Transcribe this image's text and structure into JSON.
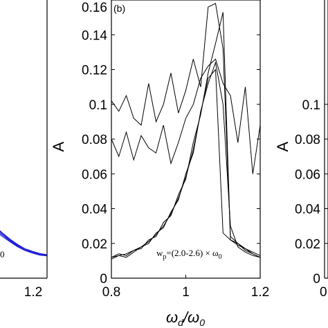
{
  "chart_data": [
    {
      "type": "line",
      "panel": "left-partial",
      "xlabel": "",
      "ylabel": "",
      "xticks": [
        1.2
      ],
      "xlim": [
        0.8,
        1.2
      ],
      "line_color": "#1f1fd6",
      "annotation": "0",
      "series": [
        {
          "x": [
            1.06,
            1.08,
            1.1,
            1.12,
            1.14,
            1.16,
            1.18,
            1.2
          ],
          "values": [
            0.03,
            0.026,
            0.0225,
            0.0195,
            0.017,
            0.0155,
            0.0142,
            0.0135
          ]
        },
        {
          "x": [
            1.06,
            1.08,
            1.1,
            1.12,
            1.14,
            1.16,
            1.18,
            1.2
          ],
          "values": [
            0.029,
            0.0255,
            0.022,
            0.019,
            0.0168,
            0.015,
            0.014,
            0.0132
          ]
        },
        {
          "x": [
            1.06,
            1.08,
            1.1,
            1.12,
            1.14,
            1.16,
            1.18,
            1.2
          ],
          "values": [
            0.028,
            0.0248,
            0.0215,
            0.0186,
            0.0162,
            0.0148,
            0.0136,
            0.013
          ]
        },
        {
          "x": [
            1.06,
            1.08,
            1.1,
            1.12,
            1.14,
            1.16,
            1.18,
            1.2
          ],
          "values": [
            0.0272,
            0.024,
            0.021,
            0.0182,
            0.016,
            0.0145,
            0.0133,
            0.0128
          ]
        }
      ]
    },
    {
      "type": "line",
      "panel": "(b)",
      "xlabel": "ω_d/ω_0",
      "ylabel": "A",
      "xlim": [
        0.8,
        1.2
      ],
      "ylim": [
        0,
        0.16
      ],
      "xticks": [
        0.8,
        1,
        1.2
      ],
      "yticks": [
        0,
        0.02,
        0.04,
        0.06,
        0.08,
        0.1,
        0.12,
        0.14,
        0.16
      ],
      "ytick_labels": [
        "0",
        "0.02",
        "0.04",
        "0.06",
        "0.08",
        "0.1",
        "0.12",
        "0.14",
        "0.16"
      ],
      "xtick_labels": [
        "0.8",
        "1",
        "1.2"
      ],
      "annotation": "w_p=(2.0-2.6)×ω_0",
      "line_color": "#000000",
      "series": [
        {
          "x": [
            0.8,
            0.82,
            0.84,
            0.86,
            0.88,
            0.9,
            0.92,
            0.94,
            0.96,
            0.98,
            1.0,
            1.02,
            1.04,
            1.06,
            1.08,
            1.1,
            1.12,
            1.14,
            1.16,
            1.18,
            1.2
          ],
          "values": [
            0.012,
            0.013,
            0.014,
            0.016,
            0.018,
            0.021,
            0.025,
            0.03,
            0.037,
            0.046,
            0.058,
            0.074,
            0.095,
            0.115,
            0.12,
            0.026,
            0.022,
            0.019,
            0.017,
            0.015,
            0.013
          ]
        },
        {
          "x": [
            0.8,
            0.82,
            0.84,
            0.86,
            0.88,
            0.9,
            0.92,
            0.94,
            0.96,
            0.98,
            1.0,
            1.02,
            1.04,
            1.06,
            1.08,
            1.1,
            1.12,
            1.14,
            1.16,
            1.18,
            1.2
          ],
          "values": [
            0.012,
            0.014,
            0.013,
            0.016,
            0.017,
            0.022,
            0.024,
            0.032,
            0.036,
            0.048,
            0.057,
            0.078,
            0.094,
            0.118,
            0.135,
            0.153,
            0.022,
            0.02,
            0.016,
            0.014,
            0.012
          ]
        },
        {
          "x": [
            0.8,
            0.82,
            0.84,
            0.86,
            0.88,
            0.9,
            0.92,
            0.94,
            0.96,
            0.98,
            1.0,
            1.02,
            1.04,
            1.06,
            1.08,
            1.1,
            1.12,
            1.14,
            1.16,
            1.18,
            1.2
          ],
          "values": [
            0.102,
            0.096,
            0.105,
            0.092,
            0.088,
            0.112,
            0.09,
            0.1,
            0.118,
            0.095,
            0.108,
            0.126,
            0.11,
            0.156,
            0.158,
            0.132,
            0.024,
            0.02,
            0.017,
            0.014,
            0.012
          ]
        },
        {
          "x": [
            0.8,
            0.82,
            0.84,
            0.86,
            0.88,
            0.9,
            0.92,
            0.94,
            0.96,
            0.98,
            1.0,
            1.02,
            1.04,
            1.06,
            1.08,
            1.1,
            1.12,
            1.14,
            1.16,
            1.18,
            1.2
          ],
          "values": [
            0.08,
            0.07,
            0.084,
            0.068,
            0.082,
            0.075,
            0.072,
            0.088,
            0.066,
            0.078,
            0.092,
            0.1,
            0.115,
            0.122,
            0.126,
            0.112,
            0.105,
            0.078,
            0.11,
            0.06,
            0.088
          ]
        },
        {
          "x": [
            0.8,
            0.82,
            0.84,
            0.86,
            0.88,
            0.9,
            0.92,
            0.94,
            0.96,
            0.98,
            1.0,
            1.02,
            1.04,
            1.06,
            1.08,
            1.1,
            1.12,
            1.14,
            1.16,
            1.18,
            1.2
          ],
          "values": [
            0.011,
            0.013,
            0.012,
            0.015,
            0.018,
            0.02,
            0.026,
            0.029,
            0.038,
            0.045,
            0.06,
            0.072,
            0.096,
            0.112,
            0.124,
            0.1,
            0.03,
            0.018,
            0.015,
            0.013,
            0.012
          ]
        }
      ]
    },
    {
      "type": "line",
      "panel": "right-partial",
      "xlabel": "",
      "ylabel": "A",
      "ylim": [
        0,
        0.1
      ],
      "yticks": [
        0,
        0.02,
        0.04,
        0.06,
        0.08,
        0.1
      ],
      "ytick_labels": [
        "0",
        "0.02",
        "0.04",
        "0.06",
        "0.08",
        "0.1"
      ],
      "xtick_labels": [
        "0"
      ],
      "series": []
    }
  ]
}
